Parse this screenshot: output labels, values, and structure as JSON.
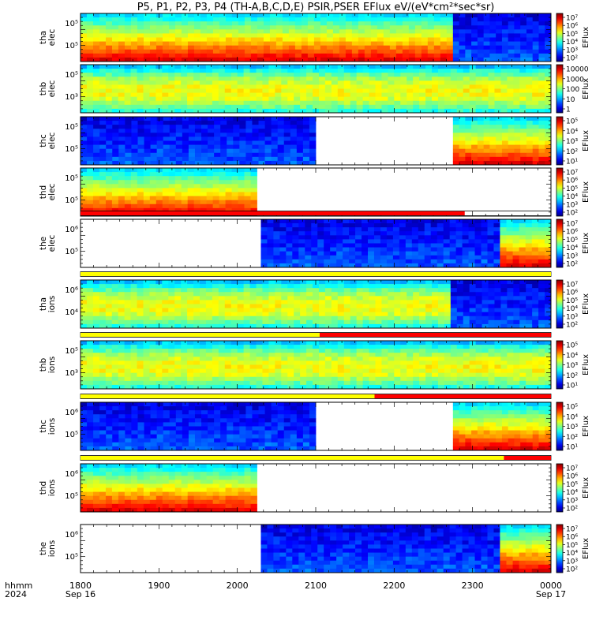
{
  "title": "P5, P1, P2, P3, P4 (TH-A,B,C,D,E) PSIR,PSER EFlux eV/(eV*cm²*sec*sr)",
  "time_axis": {
    "label_top": "hhmm",
    "label_bottom": "2024",
    "ticks": [
      "1800",
      "1900",
      "2000",
      "2100",
      "2200",
      "2300",
      "0000"
    ],
    "tick_dates": [
      "Sep 16",
      "",
      "",
      "",
      "",
      "",
      "Sep 17"
    ]
  },
  "colorbar_label": "EFlux",
  "chart_data": [
    {
      "type": "heatmap",
      "name": "tha elec",
      "ylabel": [
        "tha",
        "elec"
      ],
      "yscale": "log",
      "yticks": [
        "10⁵",
        "10⁵"
      ],
      "cbar_ticks": [
        "10⁷",
        "10⁶",
        "10⁵",
        "10⁴",
        "10³",
        "10²"
      ],
      "coverage": [
        {
          "start": "1800",
          "end": "2275",
          "level": "high"
        },
        {
          "start": "2275",
          "end": "0000",
          "level": "low"
        }
      ]
    },
    {
      "type": "heatmap",
      "name": "thb elec",
      "ylabel": [
        "thb",
        "elec"
      ],
      "yscale": "log",
      "yticks": [
        "10⁵",
        "10³"
      ],
      "cbar_ticks": [
        "10000",
        "1000",
        "100",
        "10",
        "1"
      ],
      "coverage": [
        {
          "start": "1800",
          "end": "0000",
          "level": "medium"
        }
      ]
    },
    {
      "type": "heatmap",
      "name": "thc elec",
      "ylabel": [
        "thc",
        "elec"
      ],
      "yscale": "log",
      "yticks": [
        "10⁵",
        "10⁵"
      ],
      "cbar_ticks": [
        "10⁵",
        "10⁴",
        "10³",
        "10²",
        "10¹"
      ],
      "coverage": [
        {
          "start": "1800",
          "end": "2100",
          "level": "low"
        },
        {
          "start": "2275",
          "end": "0000",
          "level": "high"
        }
      ]
    },
    {
      "type": "heatmap",
      "name": "thd elec",
      "ylabel": [
        "thd",
        "elec"
      ],
      "yscale": "log",
      "yticks": [
        "10⁵",
        "10⁵"
      ],
      "cbar_ticks": [
        "10⁷",
        "10⁶",
        "10⁵",
        "10⁴",
        "10³",
        "10²"
      ],
      "coverage": [
        {
          "start": "1800",
          "end": "2025",
          "level": "high"
        }
      ]
    },
    {
      "type": "heatmap",
      "name": "the elec",
      "ylabel": [
        "the",
        "elec"
      ],
      "yscale": "log",
      "yticks": [
        "10⁶",
        "10⁵"
      ],
      "cbar_ticks": [
        "10⁷",
        "10⁶",
        "10⁵",
        "10⁴",
        "10³",
        "10²"
      ],
      "coverage": [
        {
          "start": "2030",
          "end": "2335",
          "level": "low"
        },
        {
          "start": "2335",
          "end": "0000",
          "level": "high"
        }
      ]
    },
    {
      "type": "heatmap",
      "name": "tha ions",
      "ylabel": [
        "tha",
        "ions"
      ],
      "yscale": "log",
      "yticks": [
        "10⁶",
        "10⁴"
      ],
      "cbar_ticks": [
        "10⁷",
        "10⁶",
        "10⁵",
        "10⁴",
        "10³",
        "10²"
      ],
      "coverage": [
        {
          "start": "1800",
          "end": "2272",
          "level": "medium"
        },
        {
          "start": "2272",
          "end": "0000",
          "level": "low"
        }
      ]
    },
    {
      "type": "heatmap",
      "name": "thb ions",
      "ylabel": [
        "thb",
        "ions"
      ],
      "yscale": "log",
      "yticks": [
        "10⁵",
        "10³"
      ],
      "cbar_ticks": [
        "10⁵",
        "10⁴",
        "10³",
        "10²",
        "10¹"
      ],
      "coverage": [
        {
          "start": "1800",
          "end": "0000",
          "level": "medium"
        }
      ]
    },
    {
      "type": "heatmap",
      "name": "thc ions",
      "ylabel": [
        "thc",
        "ions"
      ],
      "yscale": "log",
      "yticks": [
        "10⁶",
        "10⁵"
      ],
      "cbar_ticks": [
        "10⁵",
        "10⁴",
        "10³",
        "10²",
        "10¹"
      ],
      "coverage": [
        {
          "start": "1800",
          "end": "2100",
          "level": "low"
        },
        {
          "start": "2275",
          "end": "0000",
          "level": "high"
        }
      ]
    },
    {
      "type": "heatmap",
      "name": "thd ions",
      "ylabel": [
        "thd",
        "ions"
      ],
      "yscale": "log",
      "yticks": [
        "10⁶",
        "10⁵"
      ],
      "cbar_ticks": [
        "10⁷",
        "10⁶",
        "10⁵",
        "10⁴",
        "10³",
        "10²"
      ],
      "coverage": [
        {
          "start": "1800",
          "end": "2025",
          "level": "high"
        }
      ]
    },
    {
      "type": "heatmap",
      "name": "the ions",
      "ylabel": [
        "the",
        "ions"
      ],
      "yscale": "log",
      "yticks": [
        "10⁶",
        "10⁵"
      ],
      "cbar_ticks": [
        "10⁷",
        "10⁶",
        "10⁵",
        "10⁴",
        "10³",
        "10²"
      ],
      "coverage": [
        {
          "start": "2030",
          "end": "2335",
          "level": "low"
        },
        {
          "start": "2335",
          "end": "0000",
          "level": "high"
        }
      ]
    }
  ],
  "mode_bars": [
    {
      "after_panel": 4,
      "segments": [
        {
          "start": "1800",
          "end": "2290",
          "color": "#ff0000"
        }
      ]
    },
    {
      "after_panel": 5,
      "segments": [
        {
          "start": "1800",
          "end": "0000",
          "color": "#ffff00"
        }
      ]
    },
    {
      "after_panel": 6,
      "segments": [
        {
          "start": "1800",
          "end": "2105",
          "color": "#ffff00"
        },
        {
          "start": "2105",
          "end": "0000",
          "color": "#ff0000"
        }
      ]
    },
    {
      "after_panel": 7,
      "segments": [
        {
          "start": "1800",
          "end": "2175",
          "color": "#ffff00"
        },
        {
          "start": "2175",
          "end": "0000",
          "color": "#ff0000"
        }
      ]
    },
    {
      "after_panel": 8,
      "segments": [
        {
          "start": "1800",
          "end": "2340",
          "color": "#ffff00"
        },
        {
          "start": "2340",
          "end": "0000",
          "color": "#ff0000"
        }
      ]
    }
  ]
}
